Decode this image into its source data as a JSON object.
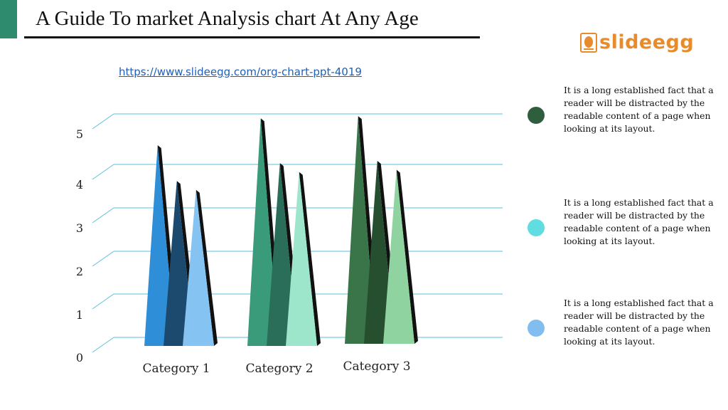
{
  "header": {
    "title": "A Guide To market Analysis chart At Any Age",
    "url": "https://www.slideegg.com/org-chart-ppt-4019"
  },
  "logo": {
    "text": "slideegg",
    "color": "#e78b2b"
  },
  "colors": {
    "accent": "#2e8b6e",
    "gridline": "#5bc0de"
  },
  "chart_data": {
    "type": "bar",
    "style": "3d-pyramid",
    "categories": [
      "Category 1",
      "Category 2",
      "Category 3"
    ],
    "y_ticks": [
      "0",
      "1",
      "2",
      "3",
      "4",
      "5"
    ],
    "ylim": [
      0,
      5
    ],
    "grid": true,
    "legend_position": "right",
    "groups": [
      {
        "category": "Category 1",
        "values": [
          4.3,
          3.5,
          3.3
        ],
        "colors": [
          "#2e8fd8",
          "#1b4a6e",
          "#85c4f2"
        ]
      },
      {
        "category": "Category 2",
        "values": [
          4.9,
          3.9,
          3.7
        ],
        "colors": [
          "#3a9b7a",
          "#2a6e5a",
          "#9de6cc"
        ]
      },
      {
        "category": "Category 3",
        "values": [
          4.95,
          3.95,
          3.75
        ],
        "colors": [
          "#3a7449",
          "#264f30",
          "#8fd4a0"
        ]
      }
    ],
    "legend": [
      {
        "text": "It is a long established fact that a reader will be distracted by the readable content of a page when looking at its layout.",
        "color": "#2e5e3e"
      },
      {
        "text": "It is a long established fact that a reader will be distracted by the readable content of a page when looking at its layout.",
        "color": "#5fdde0"
      },
      {
        "text": "It is a long established fact that a reader will be distracted by the readable content of a page when looking at its layout.",
        "color": "#82bdf0"
      }
    ]
  }
}
